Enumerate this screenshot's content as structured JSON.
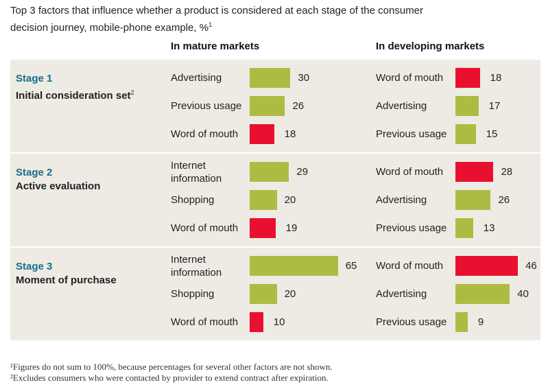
{
  "chart_data": {
    "type": "bar",
    "title": "Top 3 factors that influence whether a product is considered at each stage of the consumer decision journey, mobile-phone example, %",
    "title_footnote": "1",
    "columns": [
      "In mature markets",
      "In developing markets"
    ],
    "colors": {
      "word_of_mouth": "#e8102e",
      "other": "#adbb43",
      "stage_label": "#156f8a",
      "band": "#eeebe4"
    },
    "stages": [
      {
        "stage": "Stage 1",
        "name": "Initial consideration set",
        "footnote": "2",
        "mature": [
          {
            "label": "Advertising",
            "value": 30
          },
          {
            "label": "Previous usage",
            "value": 26
          },
          {
            "label": "Word of mouth",
            "value": 18
          }
        ],
        "developing": [
          {
            "label": "Word of mouth",
            "value": 18
          },
          {
            "label": "Advertising",
            "value": 17
          },
          {
            "label": "Previous usage",
            "value": 15
          }
        ]
      },
      {
        "stage": "Stage 2",
        "name": "Active evaluation",
        "footnote": "",
        "mature": [
          {
            "label": "Internet information",
            "value": 29
          },
          {
            "label": "Shopping",
            "value": 20
          },
          {
            "label": "Word of mouth",
            "value": 19
          }
        ],
        "developing": [
          {
            "label": "Word of mouth",
            "value": 28
          },
          {
            "label": "Advertising",
            "value": 26
          },
          {
            "label": "Previous usage",
            "value": 13
          }
        ]
      },
      {
        "stage": "Stage 3",
        "name": "Moment of purchase",
        "footnote": "",
        "mature": [
          {
            "label": "Internet information",
            "value": 65
          },
          {
            "label": "Shopping",
            "value": 20
          },
          {
            "label": "Word of mouth",
            "value": 10
          }
        ],
        "developing": [
          {
            "label": "Word of mouth",
            "value": 46
          },
          {
            "label": "Advertising",
            "value": 40
          },
          {
            "label": "Previous usage",
            "value": 9
          }
        ]
      }
    ],
    "footnotes": [
      "¹Figures do not sum to 100%, because percentages for several other factors are not shown.",
      "²Excludes consumers who were contacted by provider to extend contract after expiration."
    ]
  }
}
